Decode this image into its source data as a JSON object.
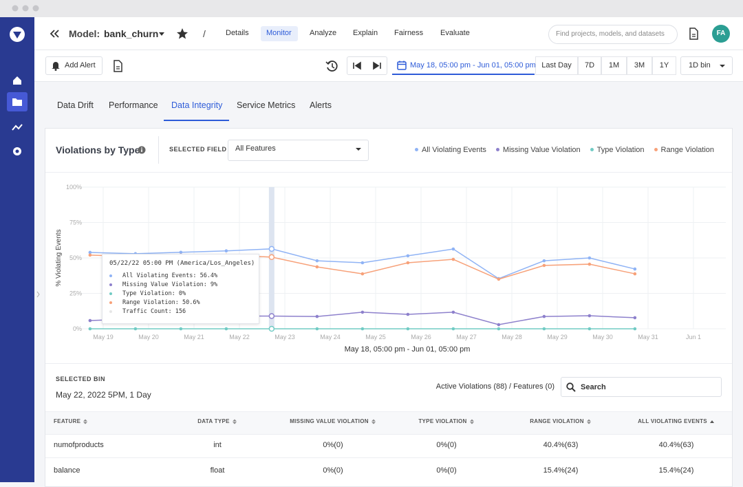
{
  "header": {
    "model_label": "Model:",
    "model_name": "bank_churn",
    "separator": "/",
    "nav": [
      "Details",
      "Monitor",
      "Analyze",
      "Explain",
      "Fairness",
      "Evaluate"
    ],
    "search_placeholder": "Find projects, models, and datasets",
    "avatar": "FA"
  },
  "toolbar": {
    "add_alert": "Add Alert",
    "date_range": "May 18, 05:00 pm - Jun 01, 05:00 pm",
    "ranges": [
      "Last Day",
      "7D",
      "1M",
      "3M",
      "1Y"
    ],
    "bin": "1D bin"
  },
  "tabs": [
    "Data Drift",
    "Performance",
    "Data Integrity",
    "Service Metrics",
    "Alerts"
  ],
  "card": {
    "title": "Violations by Type",
    "selected_field_label": "SELECTED FIELD",
    "selected_field": "All Features"
  },
  "chart_data": {
    "type": "line",
    "x_label": "May 18, 05:00 pm - Jun 01, 05:00 pm",
    "y_label": "% Violating Events",
    "x": [
      -0.29,
      0.71,
      1.71,
      2.71,
      3.71,
      4.71,
      5.71,
      6.71,
      7.71,
      8.71,
      9.71,
      10.71,
      11.71
    ],
    "xlim": [
      -0.485,
      13.712
    ],
    "xticks": [
      {
        "value": 0,
        "label": "May 19"
      },
      {
        "value": 1,
        "label": "May 20"
      },
      {
        "value": 2,
        "label": "May 21"
      },
      {
        "value": 3,
        "label": "May 22"
      },
      {
        "value": 4,
        "label": "May 23"
      },
      {
        "value": 5,
        "label": "May 24"
      },
      {
        "value": 6,
        "label": "May 25"
      },
      {
        "value": 7,
        "label": "May 26"
      },
      {
        "value": 8,
        "label": "May 27"
      },
      {
        "value": 9,
        "label": "May 28"
      },
      {
        "value": 10,
        "label": "May 29"
      },
      {
        "value": 11,
        "label": "May 30"
      },
      {
        "value": 12,
        "label": "May 31"
      },
      {
        "value": 13,
        "label": "Jun 1"
      }
    ],
    "ylim": [
      0,
      100
    ],
    "yticks": [
      {
        "value": 0,
        "label": "0%"
      },
      {
        "value": 25,
        "label": "25%"
      },
      {
        "value": 50,
        "label": "50%"
      },
      {
        "value": 75,
        "label": "75%"
      },
      {
        "value": 100,
        "label": "100%"
      }
    ],
    "grid": true,
    "series": [
      {
        "name": "All Violating Events",
        "color": "#8fb3f5",
        "values": [
          53.9,
          53,
          54,
          55,
          56.4,
          48,
          46.6,
          51.5,
          56.3,
          35.4,
          48,
          50,
          42.2
        ]
      },
      {
        "name": "Missing Value Violation",
        "color": "#8d80cc",
        "values": [
          5.8,
          7,
          8,
          9,
          9,
          8.7,
          11.7,
          10.2,
          11.7,
          2.9,
          8.7,
          9.2,
          7.8
        ]
      },
      {
        "name": "Type Violation",
        "color": "#71cbc4",
        "values": [
          0,
          0,
          0,
          0,
          0,
          0,
          0,
          0,
          0,
          0,
          0,
          0,
          0
        ]
      },
      {
        "name": "Range Violation",
        "color": "#f7a179",
        "values": [
          52,
          51,
          52,
          52,
          50.6,
          43.7,
          38.8,
          46.6,
          49,
          35,
          44.7,
          45.6,
          38.8
        ]
      }
    ]
  },
  "tooltip": {
    "title": "05/22/22 05:00 PM (America/Los_Angeles)",
    "lines": [
      "All Violating Events: 56.4%",
      "Missing Value Violation: 9%",
      "Type Violation: 0%",
      "Range Violation: 50.6%",
      "Traffic Count: 156"
    ]
  },
  "bin": {
    "label": "SELECTED BIN",
    "value": "May 22, 2022 5PM, 1 Day",
    "summary": "Active Violations (88) / Features (0)",
    "search": "Search"
  },
  "table": {
    "headers": [
      "FEATURE",
      "DATA TYPE",
      "MISSING VALUE VIOLATION",
      "TYPE VIOLATION",
      "RANGE VIOLATION",
      "ALL VIOLATING EVENTS"
    ],
    "rows": [
      [
        "numofproducts",
        "int",
        "0%(0)",
        "0%(0)",
        "40.4%(63)",
        "40.4%(63)"
      ],
      [
        "balance",
        "float",
        "0%(0)",
        "0%(0)",
        "15.4%(24)",
        "15.4%(24)"
      ]
    ]
  }
}
